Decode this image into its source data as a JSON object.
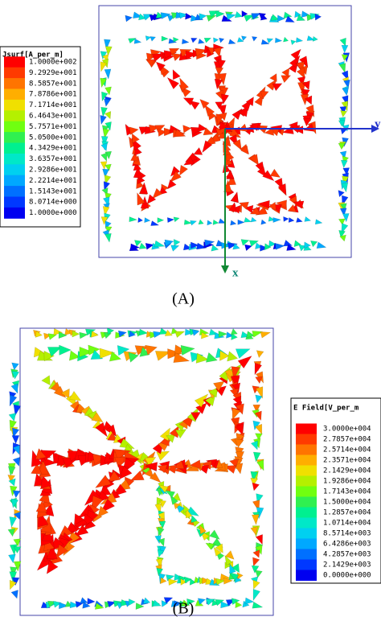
{
  "panels": [
    {
      "legend": {
        "title": "Jsurf[A_per_m]",
        "labels": [
          "1.0000e+002",
          "9.2929e+001",
          "8.5857e+001",
          "7.8786e+001",
          "7.1714e+001",
          "6.4643e+001",
          "5.7571e+001",
          "5.0500e+001",
          "4.3429e+001",
          "3.6357e+001",
          "2.9286e+001",
          "2.2214e+001",
          "1.5143e+001",
          "8.0714e+000",
          "1.0000e+000"
        ]
      },
      "axis_labels": [
        "y",
        "x"
      ],
      "caption": "(A)"
    },
    {
      "legend": {
        "title": "E Field[V_per_m",
        "labels": [
          "3.0000e+004",
          "2.7857e+004",
          "2.5714e+004",
          "2.3571e+004",
          "2.1429e+004",
          "1.9286e+004",
          "1.7143e+004",
          "1.5000e+004",
          "1.2857e+004",
          "1.0714e+004",
          "8.5714e+003",
          "6.4286e+003",
          "4.2857e+003",
          "2.1429e+003",
          "0.0000e+000"
        ]
      },
      "caption": "(B)"
    }
  ]
}
